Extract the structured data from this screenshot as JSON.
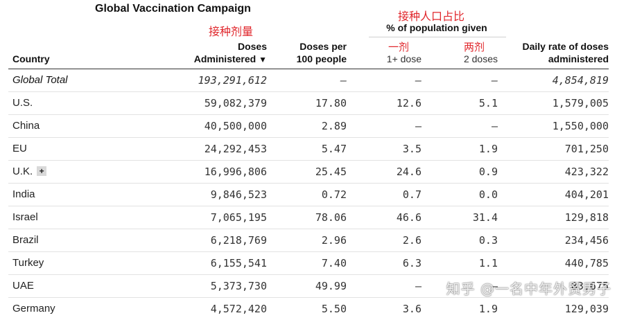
{
  "title": "Global Vaccination Campaign",
  "annotations": {
    "pct_group": "接种人口占比",
    "doses_administered": "接种剂量",
    "one_dose": "一剂",
    "two_doses": "两剂"
  },
  "group_header": "% of population given",
  "columns": {
    "country": "Country",
    "doses_line1": "Doses",
    "doses_line2": "Administered",
    "sort_indicator": "▼",
    "per100_line1": "Doses per",
    "per100_line2": "100 people",
    "one_dose": "1+ dose",
    "two_doses": "2 doses",
    "rate_line1": "Daily rate of doses",
    "rate_line2": "administered"
  },
  "rows": [
    {
      "country": "Global Total",
      "doses": "193,291,612",
      "per100": "–",
      "one": "–",
      "two": "–",
      "rate": "4,854,819"
    },
    {
      "country": "U.S.",
      "doses": "59,082,379",
      "per100": "17.80",
      "one": "12.6",
      "two": "5.1",
      "rate": "1,579,005"
    },
    {
      "country": "China",
      "doses": "40,500,000",
      "per100": "2.89",
      "one": "–",
      "two": "–",
      "rate": "1,550,000"
    },
    {
      "country": "EU",
      "doses": "24,292,453",
      "per100": "5.47",
      "one": "3.5",
      "two": "1.9",
      "rate": "701,250"
    },
    {
      "country": "U.K.",
      "expand": "+",
      "doses": "16,996,806",
      "per100": "25.45",
      "one": "24.6",
      "two": "0.9",
      "rate": "423,322"
    },
    {
      "country": "India",
      "doses": "9,846,523",
      "per100": "0.72",
      "one": "0.7",
      "two": "0.0",
      "rate": "404,201"
    },
    {
      "country": "Israel",
      "doses": "7,065,195",
      "per100": "78.06",
      "one": "46.6",
      "two": "31.4",
      "rate": "129,818"
    },
    {
      "country": "Brazil",
      "doses": "6,218,769",
      "per100": "2.96",
      "one": "2.6",
      "two": "0.3",
      "rate": "234,456"
    },
    {
      "country": "Turkey",
      "doses": "6,155,541",
      "per100": "7.40",
      "one": "6.3",
      "two": "1.1",
      "rate": "440,785"
    },
    {
      "country": "UAE",
      "doses": "5,373,730",
      "per100": "49.99",
      "one": "–",
      "two": "–",
      "rate": "83,675"
    },
    {
      "country": "Germany",
      "doses": "4,572,420",
      "per100": "5.50",
      "one": "3.6",
      "two": "1.9",
      "rate": "129,039"
    }
  ],
  "watermark": "知乎 @一名中年外贸男子"
}
